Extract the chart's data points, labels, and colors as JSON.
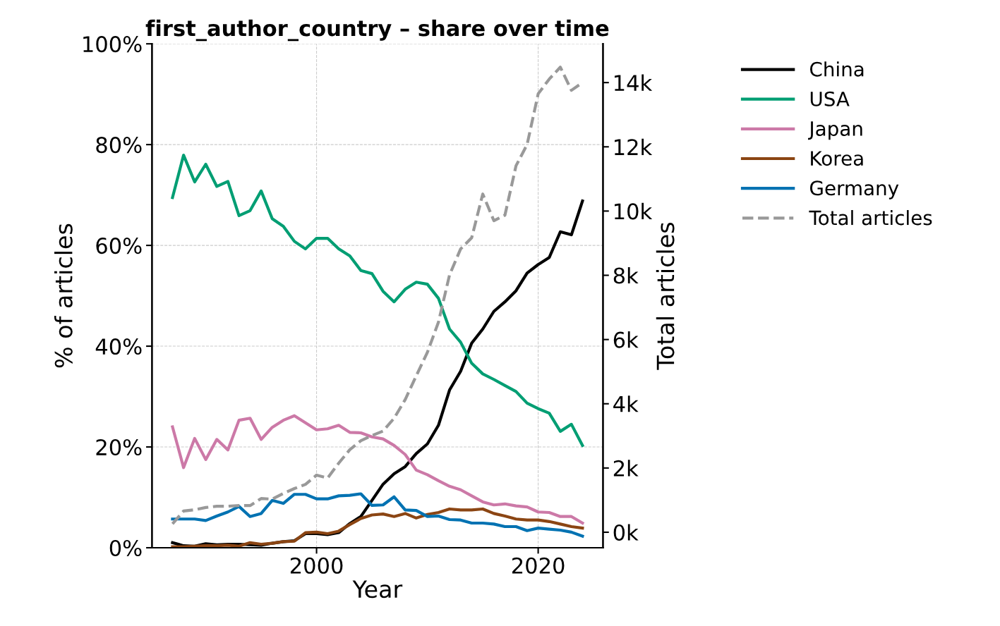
{
  "chart_data": {
    "type": "line",
    "title": "first_author_country – share over time",
    "xlabel": "Year",
    "ylabel": "% of articles",
    "y2label": "Total articles",
    "x": [
      1987,
      1988,
      1989,
      1990,
      1991,
      1992,
      1993,
      1994,
      1995,
      1996,
      1997,
      1998,
      1999,
      2000,
      2001,
      2002,
      2003,
      2004,
      2005,
      2006,
      2007,
      2008,
      2009,
      2010,
      2011,
      2012,
      2013,
      2014,
      2015,
      2016,
      2017,
      2018,
      2019,
      2020,
      2021,
      2022,
      2023,
      2024
    ],
    "xlim": [
      1985.15,
      2025.85
    ],
    "xticks": [
      2000,
      2020
    ],
    "ylim": [
      0,
      100
    ],
    "yticks": [
      {
        "value": 0,
        "label": "0%"
      },
      {
        "value": 20,
        "label": "20%"
      },
      {
        "value": 40,
        "label": "40%"
      },
      {
        "value": 60,
        "label": "60%"
      },
      {
        "value": 80,
        "label": "80%"
      },
      {
        "value": 100,
        "label": "100%"
      }
    ],
    "y2lim": [
      -483,
      15207
    ],
    "y2ticks": [
      {
        "value": 0,
        "label": "0k"
      },
      {
        "value": 2000,
        "label": "2k"
      },
      {
        "value": 4000,
        "label": "4k"
      },
      {
        "value": 6000,
        "label": "6k"
      },
      {
        "value": 8000,
        "label": "8k"
      },
      {
        "value": 10000,
        "label": "10k"
      },
      {
        "value": 12000,
        "label": "12k"
      },
      {
        "value": 14000,
        "label": "14k"
      }
    ],
    "grid": true,
    "legend": "top right",
    "line_style": "solid",
    "series": [
      {
        "name": "China",
        "color": "#000000",
        "values": [
          1.0,
          0.4,
          0.3,
          0.8,
          0.6,
          0.7,
          0.7,
          0.6,
          0.5,
          0.9,
          1.2,
          1.4,
          2.8,
          2.8,
          2.6,
          3.0,
          4.8,
          6.2,
          9.4,
          12.6,
          14.7,
          16.1,
          18.7,
          20.6,
          24.3,
          31.3,
          35.0,
          40.6,
          43.4,
          46.9,
          48.8,
          51.0,
          54.5,
          56.2,
          57.6,
          62.7,
          62.1,
          68.8
        ]
      },
      {
        "name": "USA",
        "color": "#009e73",
        "values": [
          69.5,
          77.9,
          72.6,
          76.1,
          71.7,
          72.7,
          65.9,
          66.9,
          70.8,
          65.3,
          63.8,
          60.8,
          59.3,
          61.4,
          61.4,
          59.3,
          57.9,
          55.0,
          54.4,
          50.9,
          48.8,
          51.3,
          52.7,
          52.3,
          49.5,
          43.4,
          40.8,
          36.6,
          34.5,
          33.4,
          32.2,
          31.0,
          28.7,
          27.6,
          26.7,
          23.1,
          24.5,
          20.3
        ]
      },
      {
        "name": "Japan",
        "color": "#cc79a7",
        "values": [
          24.0,
          15.9,
          21.7,
          17.5,
          21.5,
          19.4,
          25.3,
          25.7,
          21.5,
          23.9,
          25.3,
          26.2,
          24.8,
          23.4,
          23.6,
          24.3,
          22.9,
          22.8,
          22.0,
          21.6,
          20.3,
          18.5,
          15.4,
          14.5,
          13.3,
          12.2,
          11.5,
          10.3,
          9.1,
          8.5,
          8.7,
          8.3,
          8.1,
          7.1,
          7.0,
          6.2,
          6.2,
          4.9
        ]
      },
      {
        "name": "Korea",
        "color": "#8b4513",
        "values": [
          0.2,
          0.2,
          0.3,
          0.4,
          0.4,
          0.5,
          0.3,
          1.0,
          0.7,
          0.9,
          1.2,
          1.3,
          3.0,
          3.1,
          2.8,
          3.3,
          4.6,
          5.8,
          6.5,
          6.7,
          6.2,
          6.8,
          5.9,
          6.6,
          7.0,
          7.7,
          7.5,
          7.5,
          7.7,
          6.8,
          6.3,
          5.7,
          5.5,
          5.5,
          5.2,
          4.7,
          4.2,
          3.9
        ]
      },
      {
        "name": "Germany",
        "color": "#0072b2",
        "values": [
          5.7,
          5.7,
          5.7,
          5.4,
          6.3,
          7.1,
          8.2,
          6.2,
          6.8,
          9.4,
          8.8,
          10.6,
          10.6,
          9.7,
          9.7,
          10.3,
          10.4,
          10.7,
          8.4,
          8.5,
          10.1,
          7.5,
          7.4,
          6.2,
          6.3,
          5.6,
          5.5,
          4.9,
          4.9,
          4.7,
          4.2,
          4.2,
          3.4,
          3.9,
          3.7,
          3.5,
          3.1,
          2.3
        ]
      },
      {
        "name": "Total articles",
        "color": "#999999",
        "axis": "y2",
        "line_style": "dashed",
        "values": [
          260,
          660,
          700,
          770,
          810,
          810,
          830,
          830,
          1050,
          1030,
          1210,
          1360,
          1490,
          1780,
          1690,
          2150,
          2570,
          2850,
          3010,
          3150,
          3550,
          4130,
          4870,
          5600,
          6540,
          8010,
          8820,
          9170,
          10530,
          9700,
          9870,
          11410,
          12070,
          13650,
          14110,
          14480,
          13760,
          14000
        ]
      }
    ]
  }
}
